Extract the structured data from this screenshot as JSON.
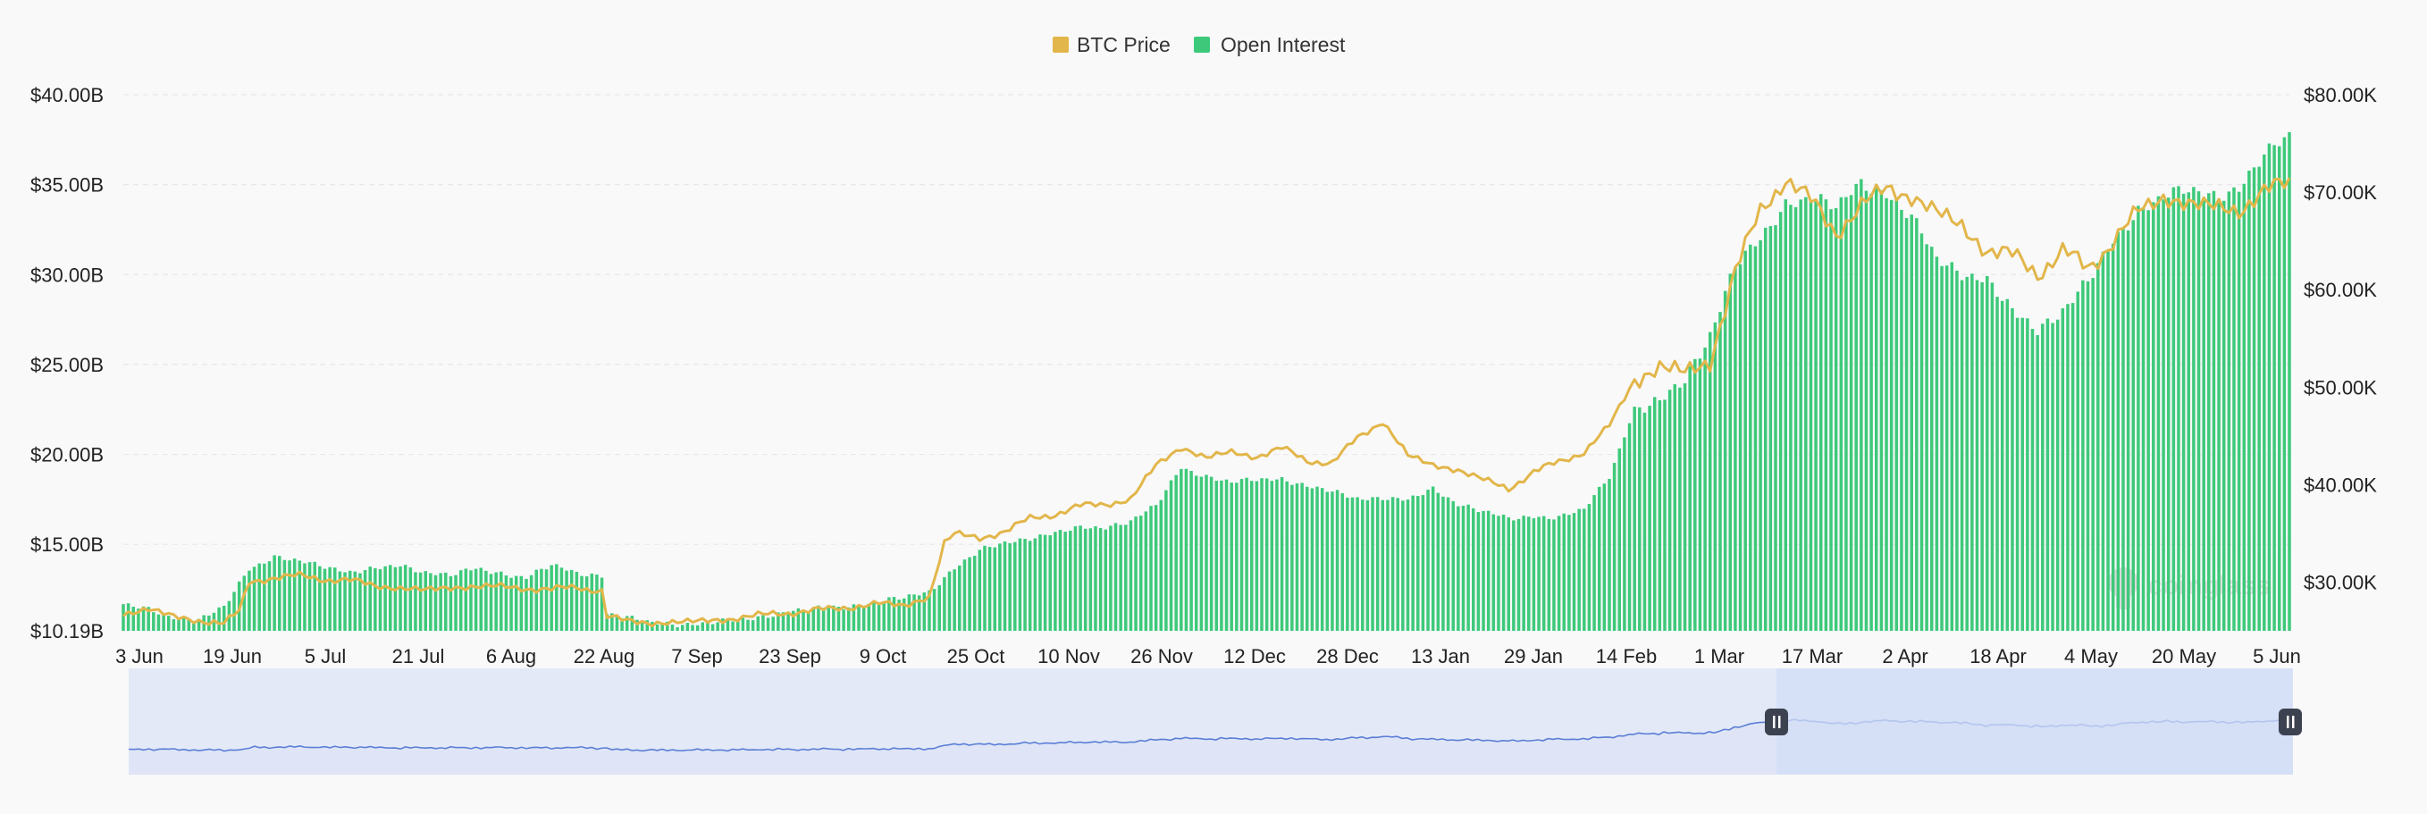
{
  "legend": {
    "btc_label": "BTC Price",
    "oi_label": "Open Interest",
    "btc_color": "#e2b64a",
    "oi_color": "#3ec97a"
  },
  "watermark": "coinglass",
  "navigator": {
    "line_color": "#5b7fd6",
    "fill_color": "#e4e9f7",
    "selected_color": "#d2dcf6",
    "handle_color": "#3c4250"
  },
  "chart_data": {
    "type": "bar",
    "title": "",
    "xlabel": "",
    "ylabel": "",
    "grid": true,
    "legend_position": "top-center",
    "left_axis": {
      "min": 10.19,
      "max": 40.0,
      "ticks": [
        "$10.19B",
        "$15.00B",
        "$20.00B",
        "$25.00B",
        "$30.00B",
        "$35.00B",
        "$40.00B"
      ]
    },
    "right_axis": {
      "min": 25000,
      "max": 80000,
      "ticks": [
        "$30.00K",
        "$40.00K",
        "$50.00K",
        "$60.00K",
        "$70.00K",
        "$80.00K"
      ]
    },
    "x_ticks": [
      "3 Jun",
      "19 Jun",
      "5 Jul",
      "21 Jul",
      "6 Aug",
      "22 Aug",
      "7 Sep",
      "23 Sep",
      "9 Oct",
      "25 Oct",
      "10 Nov",
      "26 Nov",
      "12 Dec",
      "28 Dec",
      "13 Jan",
      "29 Jan",
      "14 Feb",
      "1 Mar",
      "17 Mar",
      "2 Apr",
      "18 Apr",
      "4 May",
      "20 May",
      "5 Jun"
    ],
    "series": [
      {
        "name": "Open Interest",
        "axis": "left",
        "unit": "B",
        "points": [
          [
            0,
            11.6
          ],
          [
            5,
            11.4
          ],
          [
            10,
            11.0
          ],
          [
            15,
            10.8
          ],
          [
            17,
            11.0
          ],
          [
            20,
            11.5
          ],
          [
            22,
            12.4
          ],
          [
            25,
            13.7
          ],
          [
            30,
            14.3
          ],
          [
            35,
            14.0
          ],
          [
            40,
            13.8
          ],
          [
            45,
            13.5
          ],
          [
            50,
            13.6
          ],
          [
            55,
            13.8
          ],
          [
            60,
            13.5
          ],
          [
            65,
            13.3
          ],
          [
            70,
            13.6
          ],
          [
            75,
            13.4
          ],
          [
            80,
            13.2
          ],
          [
            85,
            13.8
          ],
          [
            90,
            13.4
          ],
          [
            95,
            13.3
          ],
          [
            96,
            11.2
          ],
          [
            100,
            10.9
          ],
          [
            105,
            10.6
          ],
          [
            110,
            10.6
          ],
          [
            115,
            10.6
          ],
          [
            120,
            10.7
          ],
          [
            125,
            10.9
          ],
          [
            130,
            11.2
          ],
          [
            135,
            11.3
          ],
          [
            140,
            11.5
          ],
          [
            145,
            11.6
          ],
          [
            150,
            11.8
          ],
          [
            155,
            12.0
          ],
          [
            160,
            12.4
          ],
          [
            165,
            13.7
          ],
          [
            170,
            14.6
          ],
          [
            175,
            15.1
          ],
          [
            180,
            15.4
          ],
          [
            185,
            15.6
          ],
          [
            190,
            15.9
          ],
          [
            195,
            16.0
          ],
          [
            200,
            16.3
          ],
          [
            205,
            17.1
          ],
          [
            210,
            19.3
          ],
          [
            215,
            18.8
          ],
          [
            220,
            18.4
          ],
          [
            225,
            18.6
          ],
          [
            230,
            18.7
          ],
          [
            235,
            18.2
          ],
          [
            240,
            17.9
          ],
          [
            245,
            17.6
          ],
          [
            250,
            17.6
          ],
          [
            255,
            17.4
          ],
          [
            260,
            18.1
          ],
          [
            265,
            17.3
          ],
          [
            270,
            16.8
          ],
          [
            275,
            16.4
          ],
          [
            280,
            16.6
          ],
          [
            285,
            16.5
          ],
          [
            290,
            16.9
          ],
          [
            295,
            18.8
          ],
          [
            300,
            22.6
          ],
          [
            305,
            22.8
          ],
          [
            310,
            24.1
          ],
          [
            315,
            26.8
          ],
          [
            320,
            30.5
          ],
          [
            325,
            31.8
          ],
          [
            330,
            34.0
          ],
          [
            335,
            34.4
          ],
          [
            340,
            33.6
          ],
          [
            345,
            35.1
          ],
          [
            350,
            34.6
          ],
          [
            355,
            33.1
          ],
          [
            360,
            30.8
          ],
          [
            365,
            30.2
          ],
          [
            370,
            29.7
          ],
          [
            375,
            27.8
          ],
          [
            380,
            27.0
          ],
          [
            385,
            28.1
          ],
          [
            390,
            29.5
          ],
          [
            395,
            31.8
          ],
          [
            400,
            33.7
          ],
          [
            405,
            34.3
          ],
          [
            410,
            34.6
          ],
          [
            415,
            34.5
          ],
          [
            420,
            34.8
          ],
          [
            425,
            36.5
          ],
          [
            430,
            37.8
          ]
        ]
      },
      {
        "name": "BTC Price",
        "axis": "right",
        "unit": "K",
        "points": [
          [
            0,
            26.8
          ],
          [
            5,
            27.2
          ],
          [
            10,
            26.5
          ],
          [
            15,
            26.0
          ],
          [
            20,
            25.8
          ],
          [
            23,
            27.0
          ],
          [
            25,
            30.0
          ],
          [
            30,
            30.5
          ],
          [
            35,
            30.6
          ],
          [
            40,
            30.3
          ],
          [
            45,
            30.2
          ],
          [
            50,
            29.6
          ],
          [
            55,
            29.4
          ],
          [
            60,
            29.2
          ],
          [
            65,
            29.4
          ],
          [
            70,
            29.6
          ],
          [
            75,
            29.5
          ],
          [
            80,
            29.4
          ],
          [
            85,
            29.2
          ],
          [
            90,
            29.5
          ],
          [
            95,
            29.1
          ],
          [
            96,
            26.5
          ],
          [
            100,
            26.0
          ],
          [
            105,
            25.8
          ],
          [
            110,
            25.9
          ],
          [
            115,
            26.0
          ],
          [
            120,
            26.2
          ],
          [
            125,
            26.5
          ],
          [
            130,
            26.8
          ],
          [
            135,
            27.0
          ],
          [
            140,
            27.2
          ],
          [
            145,
            27.5
          ],
          [
            150,
            27.8
          ],
          [
            155,
            27.6
          ],
          [
            160,
            28.5
          ],
          [
            163,
            34.0
          ],
          [
            165,
            35.0
          ],
          [
            170,
            34.5
          ],
          [
            175,
            35.2
          ],
          [
            180,
            36.5
          ],
          [
            185,
            37.0
          ],
          [
            190,
            37.8
          ],
          [
            195,
            38.0
          ],
          [
            200,
            38.5
          ],
          [
            205,
            42.0
          ],
          [
            210,
            43.8
          ],
          [
            215,
            42.8
          ],
          [
            220,
            43.3
          ],
          [
            225,
            42.9
          ],
          [
            230,
            43.7
          ],
          [
            235,
            42.5
          ],
          [
            240,
            42.2
          ],
          [
            245,
            44.8
          ],
          [
            250,
            46.5
          ],
          [
            255,
            43.0
          ],
          [
            260,
            42.0
          ],
          [
            265,
            41.5
          ],
          [
            270,
            40.5
          ],
          [
            275,
            39.6
          ],
          [
            280,
            41.3
          ],
          [
            285,
            42.3
          ],
          [
            290,
            43.4
          ],
          [
            295,
            46.0
          ],
          [
            300,
            50.8
          ],
          [
            305,
            52.0
          ],
          [
            310,
            51.6
          ],
          [
            315,
            52.5
          ],
          [
            320,
            62.0
          ],
          [
            325,
            68.0
          ],
          [
            330,
            71.5
          ],
          [
            335,
            69.0
          ],
          [
            340,
            66.0
          ],
          [
            345,
            68.5
          ],
          [
            350,
            70.5
          ],
          [
            355,
            69.5
          ],
          [
            360,
            68.0
          ],
          [
            365,
            66.5
          ],
          [
            370,
            64.0
          ],
          [
            375,
            63.5
          ],
          [
            380,
            61.8
          ],
          [
            385,
            63.8
          ],
          [
            390,
            62.2
          ],
          [
            395,
            65.0
          ],
          [
            400,
            68.0
          ],
          [
            405,
            69.5
          ],
          [
            410,
            68.8
          ],
          [
            415,
            68.5
          ],
          [
            420,
            68.2
          ],
          [
            425,
            70.0
          ],
          [
            430,
            71.0
          ]
        ]
      }
    ]
  }
}
